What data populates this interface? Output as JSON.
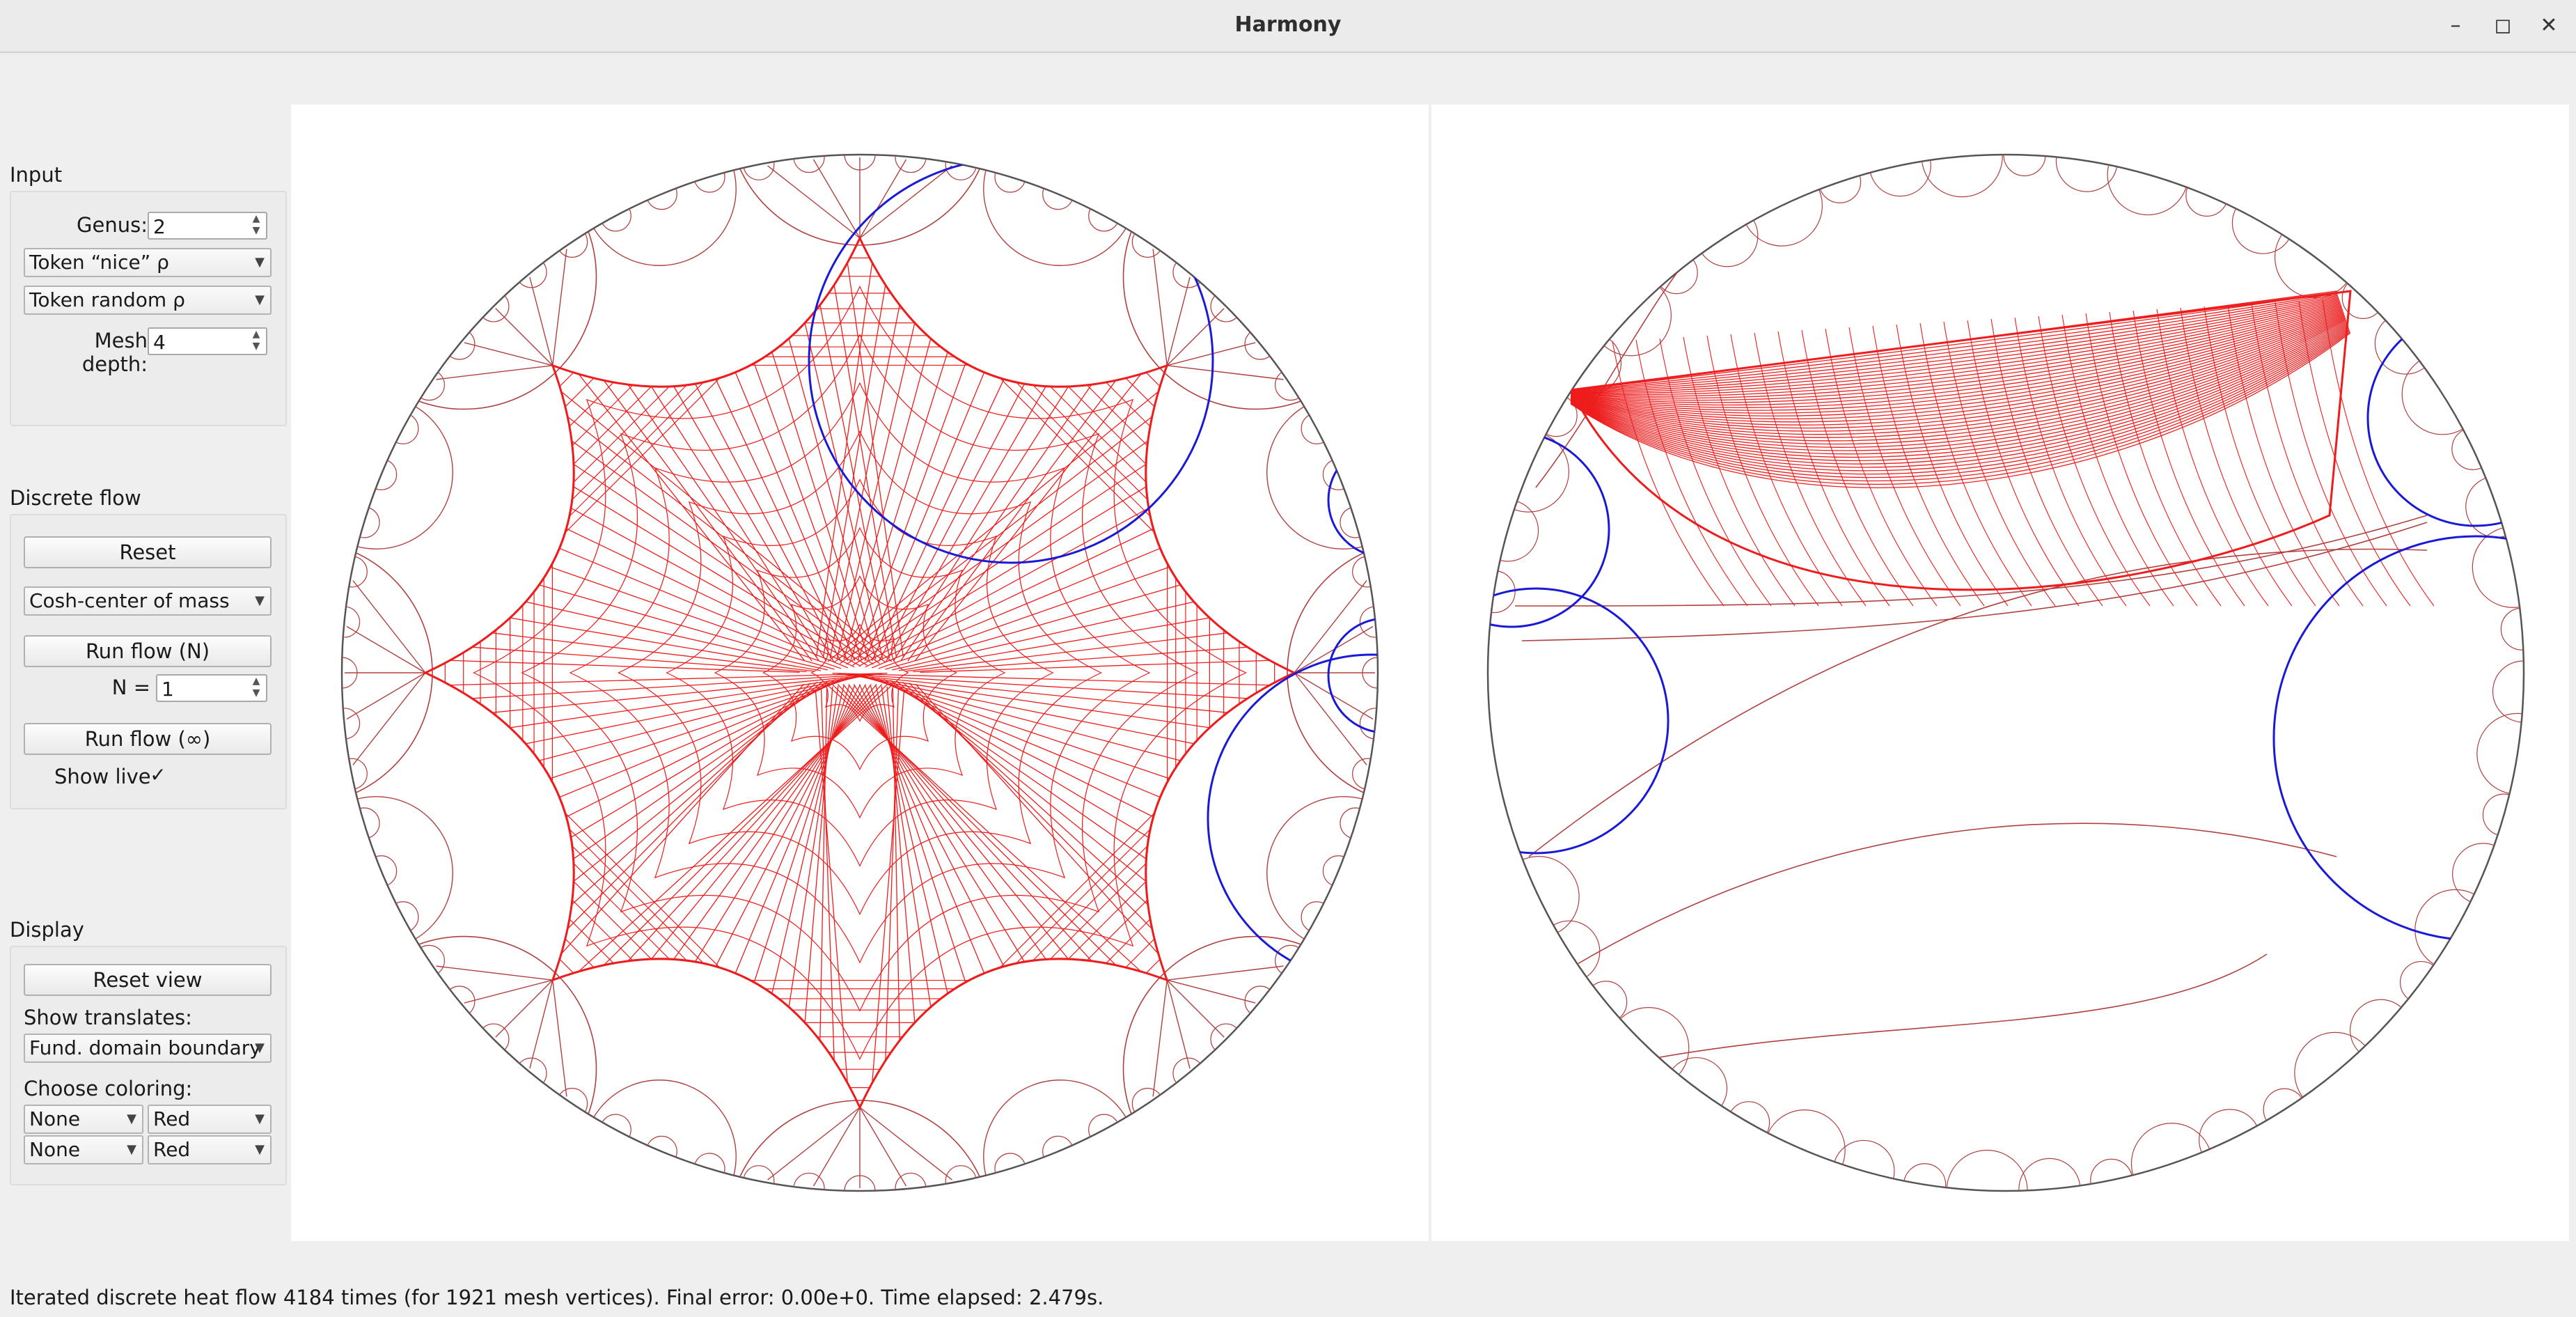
{
  "window": {
    "title": "Harmony",
    "minimize": "–",
    "maximize": "◻",
    "close": "✕"
  },
  "input": {
    "label": "Input",
    "genus_label": "Genus:",
    "genus_value": "2",
    "rho_nice": "Token “nice” ρ",
    "rho_random": "Token random ρ",
    "mesh_depth_label": "Mesh depth:",
    "mesh_depth_value": "4"
  },
  "flow": {
    "label": "Discrete flow",
    "reset": "Reset",
    "method": "Cosh-center of mass",
    "run_n": "Run flow (N)",
    "n_label": "N =",
    "n_value": "1",
    "run_inf": "Run flow (∞)",
    "show_live": "Show live",
    "show_live_check": "✓"
  },
  "display": {
    "label": "Display",
    "reset_view": "Reset view",
    "translates_label": "Show translates:",
    "translates_value": "Fund. domain boundary",
    "coloring_label": "Choose coloring:",
    "color_a1": "None",
    "color_b1": "Red",
    "color_a2": "None",
    "color_b2": "Red"
  },
  "colors": {
    "mesh": "#ee1c1c",
    "translate": "#b04040",
    "blue_circle": "#1a1ad6",
    "disk_border": "#555555"
  },
  "status": "Iterated discrete heat flow 4184 times (for 1921 mesh vertices). Final error: 0.00e+0. Time elapsed: 2.479s."
}
